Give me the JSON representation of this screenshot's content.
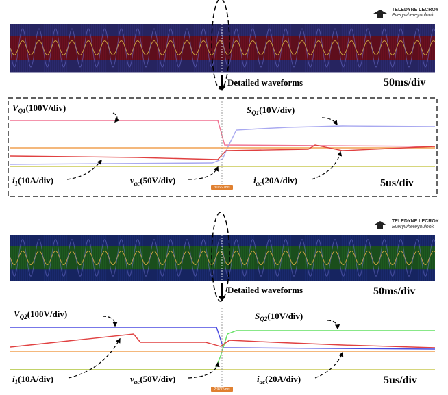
{
  "figures": [
    {
      "logo": {
        "brand": "TELEDYNE LECROY",
        "tagline": "Everywhereyoulook"
      },
      "arrow_label": "Detailed waveforms",
      "overview_timebase": "50ms/div",
      "detail_timebase": "5us/div",
      "cursor_time": "3.0660 ms",
      "labels": [
        {
          "symbol": "V",
          "subscript": "Q1",
          "scale": "(100V/div)"
        },
        {
          "symbol": "S",
          "subscript": "Q1",
          "scale": "(10V/div)"
        },
        {
          "symbol": "i",
          "subscript": "1",
          "scale": "(10A/div)"
        },
        {
          "symbol": "v",
          "subscript": "ac",
          "scale": "(50V/div)"
        },
        {
          "symbol": "i",
          "subscript": "ac",
          "scale": "(20A/div)"
        }
      ]
    },
    {
      "logo": {
        "brand": "TELEDYNE LECROY",
        "tagline": "Everywhereyoulook"
      },
      "arrow_label": "Detailed waveforms",
      "overview_timebase": "50ms/div",
      "detail_timebase": "5us/div",
      "cursor_time": "2.9775 ms",
      "labels": [
        {
          "symbol": "V",
          "subscript": "Q2",
          "scale": "(100V/div)"
        },
        {
          "symbol": "S",
          "subscript": "Q2",
          "scale": "(10V/div)"
        },
        {
          "symbol": "i",
          "subscript": "1",
          "scale": "(10A/div)"
        },
        {
          "symbol": "v",
          "subscript": "ac",
          "scale": "(50V/div)"
        },
        {
          "symbol": "i",
          "subscript": "ac",
          "scale": "(20A/div)"
        }
      ]
    }
  ]
}
